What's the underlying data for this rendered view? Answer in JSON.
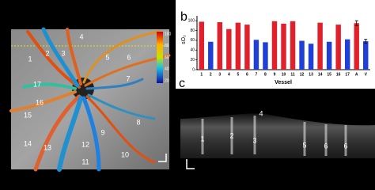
{
  "chart_data": {
    "type": "bar",
    "panel_label": "b",
    "ylabel": "sO₂",
    "xlabel": "Vessel",
    "categories": [
      "1",
      "2",
      "3",
      "4",
      "5",
      "6",
      "7",
      "8",
      "9",
      "10",
      "11",
      "12",
      "13",
      "14",
      "15",
      "16",
      "17",
      "A",
      "V"
    ],
    "values": [
      98,
      57,
      97,
      83,
      96,
      92,
      61,
      56,
      99,
      94,
      99,
      59,
      53,
      96,
      57,
      92,
      62,
      95,
      58
    ],
    "colors": [
      "#e0202a",
      "#1f3fd6",
      "#e0202a",
      "#e0202a",
      "#e0202a",
      "#e0202a",
      "#1f3fd6",
      "#1f3fd6",
      "#e0202a",
      "#e0202a",
      "#e0202a",
      "#1f3fd6",
      "#1f3fd6",
      "#e0202a",
      "#1f3fd6",
      "#e0202a",
      "#1f3fd6",
      "#e0202a",
      "#1f3fd6"
    ],
    "errors": [
      null,
      null,
      null,
      null,
      null,
      null,
      null,
      null,
      null,
      null,
      null,
      null,
      null,
      null,
      null,
      null,
      null,
      5,
      4
    ],
    "ylim": [
      0,
      110
    ],
    "yticks": [
      0,
      20,
      40,
      60,
      80,
      100
    ]
  },
  "panel_a": {
    "vessel_labels": [
      "1",
      "2",
      "3",
      "4",
      "5",
      "6",
      "7",
      "8",
      "9",
      "10",
      "11",
      "12",
      "13",
      "14",
      "15",
      "16",
      "17"
    ],
    "colorbar_ticks": [
      100,
      80,
      60,
      40,
      20
    ]
  },
  "panel_c": {
    "panel_label": "c",
    "vessel_labels": [
      "1",
      "2",
      "3",
      "4",
      "5",
      "6",
      "6"
    ]
  }
}
